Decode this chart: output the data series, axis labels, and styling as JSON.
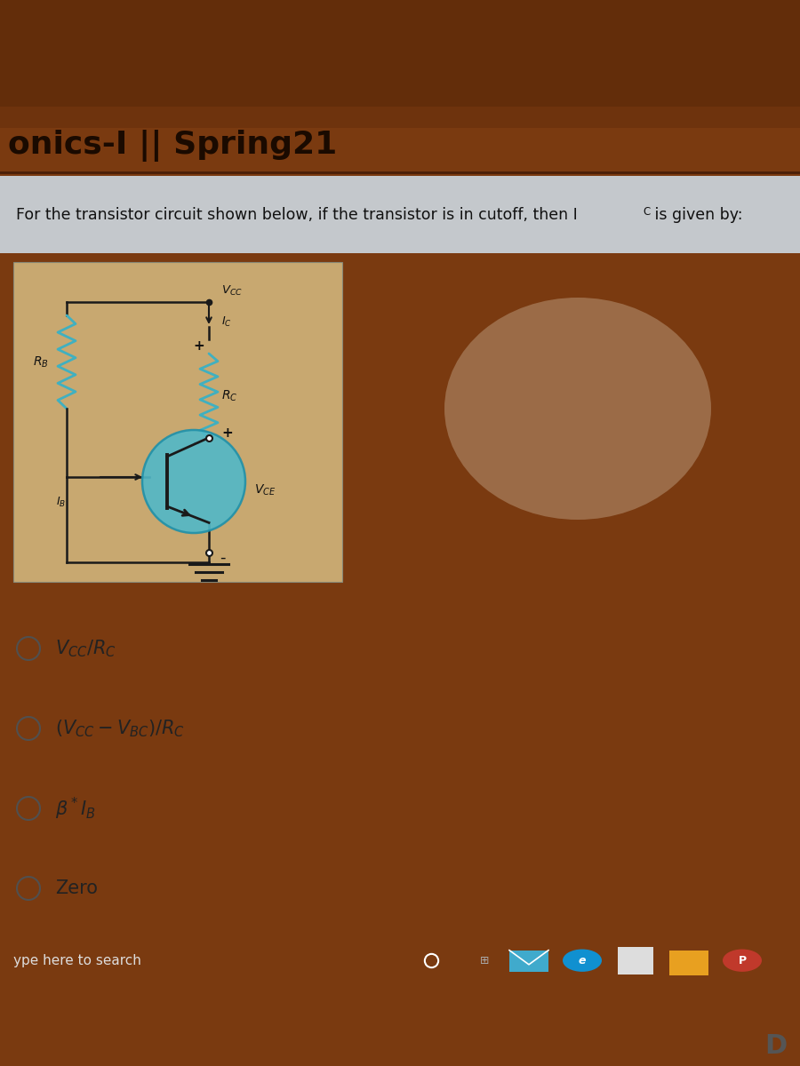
{
  "header_bg_top": "#6b3010",
  "header_bg_bottom": "#9b5020",
  "header_text": "onics-I || Spring21",
  "header_text_color": "#1a0a00",
  "header_fontsize": 26,
  "screen_bg": "#b8bfc8",
  "browser_header_bg": "#9b6030",
  "question_bar_bg": "#c8cccc",
  "question_text": "For the transistor circuit shown below, if the transistor is in cutoff, then I",
  "question_text_color": "#111111",
  "question_fontsize": 12.5,
  "circuit_bg": "#c8a870",
  "wire_color": "#1a1a1a",
  "resistor_color": "#40b0c0",
  "transistor_circle_color": "#50b8c8",
  "label_color": "#111111",
  "option_text_color": "#222222",
  "option_fontsize": 15,
  "taskbar_bg": "#3a4a70",
  "taskbar_text": "ype here to search",
  "taskbar_text_color": "#dddddd",
  "bottom_bg": "#1a1a1a",
  "glare_color": "#ffffee",
  "wood_bg": "#7a3a10"
}
